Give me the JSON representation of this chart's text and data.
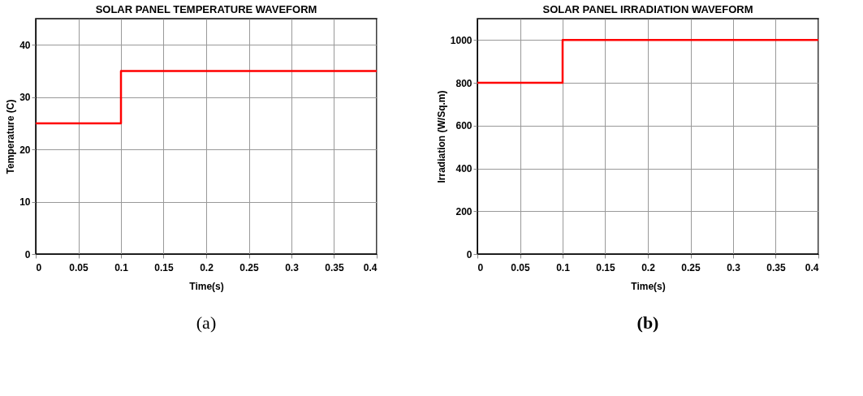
{
  "chart_data": [
    {
      "type": "step",
      "title": "SOLAR PANEL TEMPERATURE WAVEFORM",
      "xlabel": "Time(s)",
      "ylabel": "Temperature (C)",
      "x": [
        0,
        0.1,
        0.4
      ],
      "series": [
        {
          "color": "#ff0000",
          "values": [
            25,
            35,
            35
          ]
        }
      ],
      "xlim": [
        0,
        0.4
      ],
      "xticks": [
        0,
        0.05,
        0.1,
        0.15,
        0.2,
        0.25,
        0.3,
        0.35,
        0.4
      ],
      "ylim": [
        0,
        45
      ],
      "yticks": [
        0,
        10,
        20,
        30,
        40
      ],
      "grid": true,
      "annotations": [
        "(a)"
      ]
    },
    {
      "type": "step",
      "title": "SOLAR PANEL IRRADIATION WAVEFORM",
      "xlabel": "Time(s)",
      "ylabel": "Irradiation (W/Sq.m)",
      "x": [
        0,
        0.1,
        0.4
      ],
      "series": [
        {
          "color": "#ff0000",
          "values": [
            800,
            1000,
            1000
          ]
        }
      ],
      "xlim": [
        0,
        0.4
      ],
      "xticks": [
        0,
        0.05,
        0.1,
        0.15,
        0.2,
        0.25,
        0.3,
        0.35,
        0.4
      ],
      "ylim": [
        0,
        1100
      ],
      "yticks": [
        0,
        200,
        400,
        600,
        800,
        1000
      ],
      "grid": true,
      "annotations": [
        "(b)"
      ]
    }
  ]
}
